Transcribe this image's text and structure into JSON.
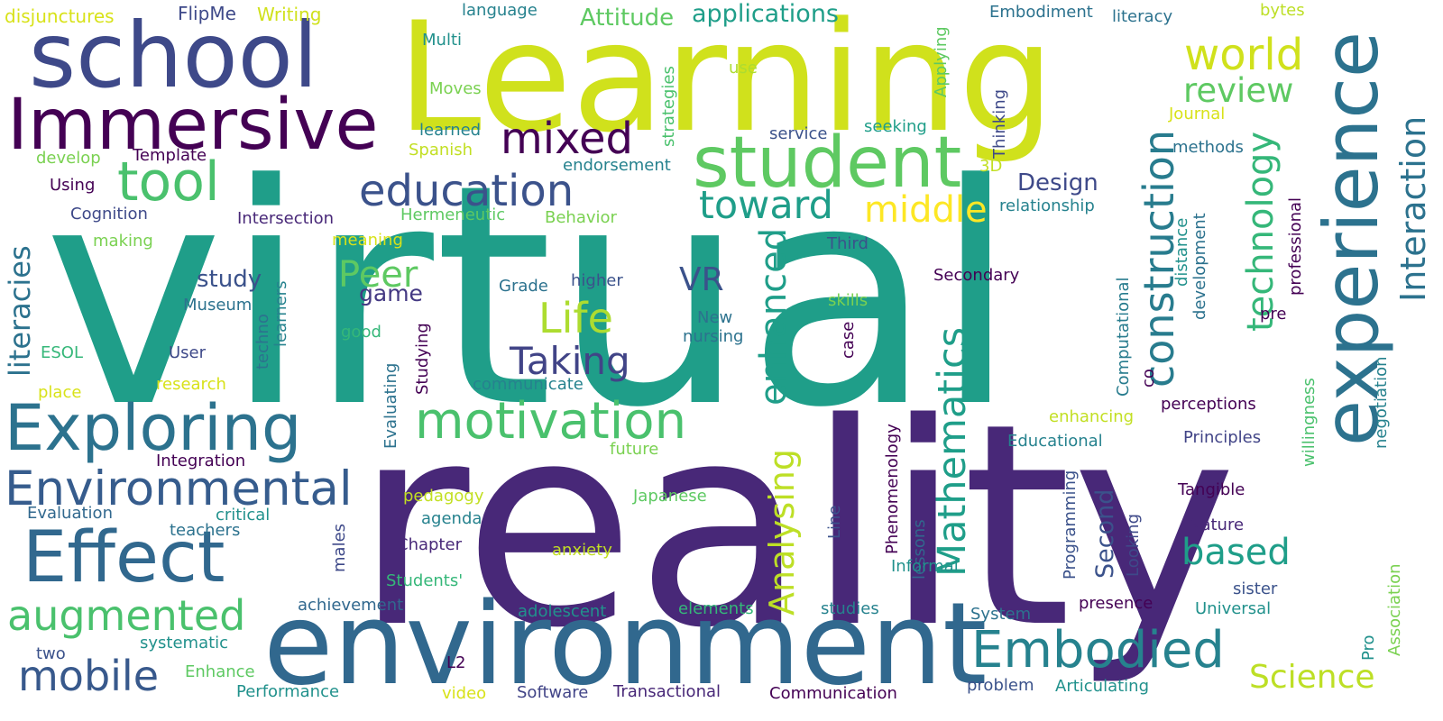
{
  "word_cloud": {
    "words": [
      {
        "text": "virtual",
        "color": "#1f9e89"
      },
      {
        "text": "reality",
        "color": "#482878"
      },
      {
        "text": "Learning",
        "color": "#d0e11c"
      },
      {
        "text": "environment",
        "color": "#31688e"
      },
      {
        "text": "school",
        "color": "#3e4989"
      },
      {
        "text": "Immersive",
        "color": "#440154"
      },
      {
        "text": "experience",
        "color": "#2c728e"
      },
      {
        "text": "student",
        "color": "#5ec962"
      },
      {
        "text": "Effect",
        "color": "#31688e"
      },
      {
        "text": "Exploring",
        "color": "#2c728e"
      },
      {
        "text": "motivation",
        "color": "#4ac16d"
      },
      {
        "text": "Environmental",
        "color": "#365c8d"
      },
      {
        "text": "Embodied",
        "color": "#26828e"
      },
      {
        "text": "augmented",
        "color": "#4ac16d"
      },
      {
        "text": "tool",
        "color": "#4ac16d"
      },
      {
        "text": "construction",
        "color": "#287c8e"
      },
      {
        "text": "education",
        "color": "#3b528b"
      },
      {
        "text": "world",
        "color": "#d0e11c"
      },
      {
        "text": "mobile",
        "color": "#38598c"
      },
      {
        "text": "mixed",
        "color": "#440154"
      },
      {
        "text": "Interaction",
        "color": "#2c728e"
      },
      {
        "text": "enhanced",
        "color": "#1f9e89"
      },
      {
        "text": "technology",
        "color": "#35b779"
      },
      {
        "text": "Mathematics",
        "color": "#1f9e89"
      },
      {
        "text": "Analysing",
        "color": "#bddf26"
      },
      {
        "text": "Life",
        "color": "#addc30"
      },
      {
        "text": "Taking",
        "color": "#414487"
      },
      {
        "text": "toward",
        "color": "#1f9e89"
      },
      {
        "text": "middle",
        "color": "#fde725"
      },
      {
        "text": "review",
        "color": "#5ec962"
      },
      {
        "text": "Peer",
        "color": "#5ec962"
      },
      {
        "text": "Science",
        "color": "#bddf26"
      },
      {
        "text": "based",
        "color": "#1f9e89"
      },
      {
        "text": "VR",
        "color": "#3b528b"
      },
      {
        "text": "literacies",
        "color": "#2c728e"
      },
      {
        "text": "applications",
        "color": "#1f9e89"
      },
      {
        "text": "Attitude",
        "color": "#5ec962"
      },
      {
        "text": "Design",
        "color": "#3e4989"
      },
      {
        "text": "study",
        "color": "#3b528b"
      },
      {
        "text": "game",
        "color": "#443983"
      },
      {
        "text": "Second",
        "color": "#3b528b"
      },
      {
        "text": "disjunctures",
        "color": "#d8e219"
      },
      {
        "text": "FlipMe",
        "color": "#3e4989"
      },
      {
        "text": "Writing",
        "color": "#d0e11c"
      },
      {
        "text": "language",
        "color": "#26828e"
      },
      {
        "text": "Multi",
        "color": "#21918c"
      },
      {
        "text": "Moves",
        "color": "#7ad151"
      },
      {
        "text": "learned",
        "color": "#26828e"
      },
      {
        "text": "Spanish",
        "color": "#c2df23"
      },
      {
        "text": "strategies",
        "color": "#4ac16d"
      },
      {
        "text": "use",
        "color": "#addc30"
      },
      {
        "text": "Applying",
        "color": "#5ec962"
      },
      {
        "text": "Embodiment",
        "color": "#2c728e"
      },
      {
        "text": "literacy",
        "color": "#2c728e"
      },
      {
        "text": "bytes",
        "color": "#bddf26"
      },
      {
        "text": "Journal",
        "color": "#d8e219"
      },
      {
        "text": "methods",
        "color": "#2c728e"
      },
      {
        "text": "Thinking",
        "color": "#3e4989"
      },
      {
        "text": "3D",
        "color": "#c2df23"
      },
      {
        "text": "service",
        "color": "#3b528b"
      },
      {
        "text": "seeking",
        "color": "#1f9e89"
      },
      {
        "text": "endorsement",
        "color": "#26828e"
      },
      {
        "text": "develop",
        "color": "#7ad151"
      },
      {
        "text": "Template",
        "color": "#440154"
      },
      {
        "text": "Using",
        "color": "#440154"
      },
      {
        "text": "Cognition",
        "color": "#3e4989"
      },
      {
        "text": "Intersection",
        "color": "#482878"
      },
      {
        "text": "Hermeneutic",
        "color": "#5ec962"
      },
      {
        "text": "Behavior",
        "color": "#7ad151"
      },
      {
        "text": "relationship",
        "color": "#26828e"
      },
      {
        "text": "professional",
        "color": "#440154"
      },
      {
        "text": "making",
        "color": "#7ad151"
      },
      {
        "text": "meaning",
        "color": "#d8e219"
      },
      {
        "text": "Third",
        "color": "#3b528b"
      },
      {
        "text": "distance",
        "color": "#21918c"
      },
      {
        "text": "development",
        "color": "#2c728e"
      },
      {
        "text": "Computational",
        "color": "#287c8e"
      },
      {
        "text": "Secondary",
        "color": "#440154"
      },
      {
        "text": "skills",
        "color": "#7ad151"
      },
      {
        "text": "Museum",
        "color": "#2c728e"
      },
      {
        "text": "Grade",
        "color": "#2c728e"
      },
      {
        "text": "higher",
        "color": "#3b528b"
      },
      {
        "text": "techno",
        "color": "#2c728e"
      },
      {
        "text": "learners",
        "color": "#26828e"
      },
      {
        "text": "New",
        "color": "#2c728e"
      },
      {
        "text": "nursing",
        "color": "#2c728e"
      },
      {
        "text": "good",
        "color": "#35b779"
      },
      {
        "text": "User",
        "color": "#3e4989"
      },
      {
        "text": "ESOL",
        "color": "#35b779"
      },
      {
        "text": "place",
        "color": "#d8e219"
      },
      {
        "text": "research",
        "color": "#d8e219"
      },
      {
        "text": "Evaluating",
        "color": "#2c728e"
      },
      {
        "text": "Studying",
        "color": "#440154"
      },
      {
        "text": "communicate",
        "color": "#26828e"
      },
      {
        "text": "case",
        "color": "#440154"
      },
      {
        "text": "co",
        "color": "#440154"
      },
      {
        "text": "pre",
        "color": "#440154"
      },
      {
        "text": "willingness",
        "color": "#4ac16d"
      },
      {
        "text": "negotiation",
        "color": "#26828e"
      },
      {
        "text": "enhancing",
        "color": "#c2df23"
      },
      {
        "text": "perceptions",
        "color": "#440154"
      },
      {
        "text": "Phenomenology",
        "color": "#440154"
      },
      {
        "text": "Educational",
        "color": "#26828e"
      },
      {
        "text": "Principles",
        "color": "#414487"
      },
      {
        "text": "future",
        "color": "#7ad151"
      },
      {
        "text": "Integration",
        "color": "#440154"
      },
      {
        "text": "Evaluation",
        "color": "#31688e"
      },
      {
        "text": "critical",
        "color": "#21918c"
      },
      {
        "text": "teachers",
        "color": "#2c728e"
      },
      {
        "text": "pedagogy",
        "color": "#c2df23"
      },
      {
        "text": "agenda",
        "color": "#26828e"
      },
      {
        "text": "Japanese",
        "color": "#5ec962"
      },
      {
        "text": "Line",
        "color": "#3b528b"
      },
      {
        "text": "Programming",
        "color": "#3b528b"
      },
      {
        "text": "Looking",
        "color": "#3e4989"
      },
      {
        "text": "lessons",
        "color": "#31688e"
      },
      {
        "text": "Tangible",
        "color": "#440154"
      },
      {
        "text": "Nature",
        "color": "#482878"
      },
      {
        "text": "males",
        "color": "#3e4989"
      },
      {
        "text": "Chapter",
        "color": "#482878"
      },
      {
        "text": "anxiety",
        "color": "#c2df23"
      },
      {
        "text": "Informal",
        "color": "#21918c"
      },
      {
        "text": "Students'",
        "color": "#35b779"
      },
      {
        "text": "sister",
        "color": "#3b528b"
      },
      {
        "text": "achievement",
        "color": "#31688e"
      },
      {
        "text": "adolescent",
        "color": "#21918c"
      },
      {
        "text": "elements",
        "color": "#35b779"
      },
      {
        "text": "presence",
        "color": "#440154"
      },
      {
        "text": "studies",
        "color": "#26828e"
      },
      {
        "text": "System",
        "color": "#2c728e"
      },
      {
        "text": "Universal",
        "color": "#21918c"
      },
      {
        "text": "Association",
        "color": "#7ad151"
      },
      {
        "text": "two",
        "color": "#3b528b"
      },
      {
        "text": "systematic",
        "color": "#21918c"
      },
      {
        "text": "Enhance",
        "color": "#5ec962"
      },
      {
        "text": "L2",
        "color": "#440154"
      },
      {
        "text": "Pro",
        "color": "#21918c"
      },
      {
        "text": "Performance",
        "color": "#21918c"
      },
      {
        "text": "video",
        "color": "#d8e219"
      },
      {
        "text": "Software",
        "color": "#414487"
      },
      {
        "text": "Transactional",
        "color": "#482878"
      },
      {
        "text": "Communication",
        "color": "#440154"
      },
      {
        "text": "problem",
        "color": "#3b528b"
      },
      {
        "text": "Articulating",
        "color": "#21918c"
      }
    ]
  }
}
